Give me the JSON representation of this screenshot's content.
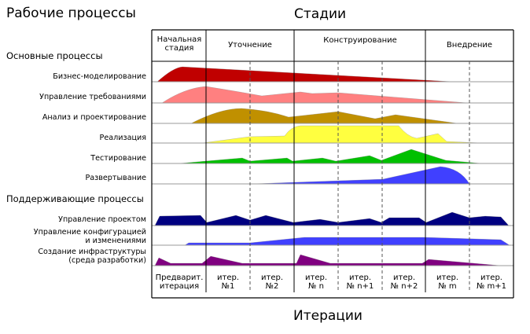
{
  "titles": {
    "workflows": "Рабочие процессы",
    "phases": "Стадии",
    "iterations": "Итерации"
  },
  "sections": {
    "core": "Основные процессы",
    "supporting": "Поддерживающие процессы"
  },
  "phases": [
    {
      "line1": "Начальная",
      "line2": "стадия"
    },
    {
      "line1": "Уточнение"
    },
    {
      "line1": "Конструирование"
    },
    {
      "line1": "Внедрение"
    }
  ],
  "workflows": [
    {
      "line1": "Бизнес-моделирование",
      "color": "#c00000"
    },
    {
      "line1": "Управление требованиями",
      "color": "#ff8080"
    },
    {
      "line1": "Анализ и проектирование",
      "color": "#c09000"
    },
    {
      "line1": "Реализация",
      "color": "#ffff40"
    },
    {
      "line1": "Тестирование",
      "color": "#00c000"
    },
    {
      "line1": "Развертывание",
      "color": "#4040ff"
    },
    {
      "line1": "Управление проектом",
      "color": "#000080"
    },
    {
      "line1": "Управление конфигурацией",
      "line2": "и изменениями",
      "color": "#4040ff"
    },
    {
      "line1": "Создание инфраструктуры",
      "line2": "(среда разработки)",
      "color": "#800080"
    }
  ],
  "iterations": [
    {
      "line1": "Предварит.",
      "line2": "итерация"
    },
    {
      "line1": "итер.",
      "line2": "№1"
    },
    {
      "line1": "итер.",
      "line2": "№2"
    },
    {
      "line1": "итер.",
      "line2": "№ n"
    },
    {
      "line1": "итер.",
      "line2": "№ n+1"
    },
    {
      "line1": "итер.",
      "line2": "№ n+2"
    },
    {
      "line1": "итер.",
      "line2": "№ m"
    },
    {
      "line1": "итер.",
      "line2": "№ m+1"
    }
  ]
}
